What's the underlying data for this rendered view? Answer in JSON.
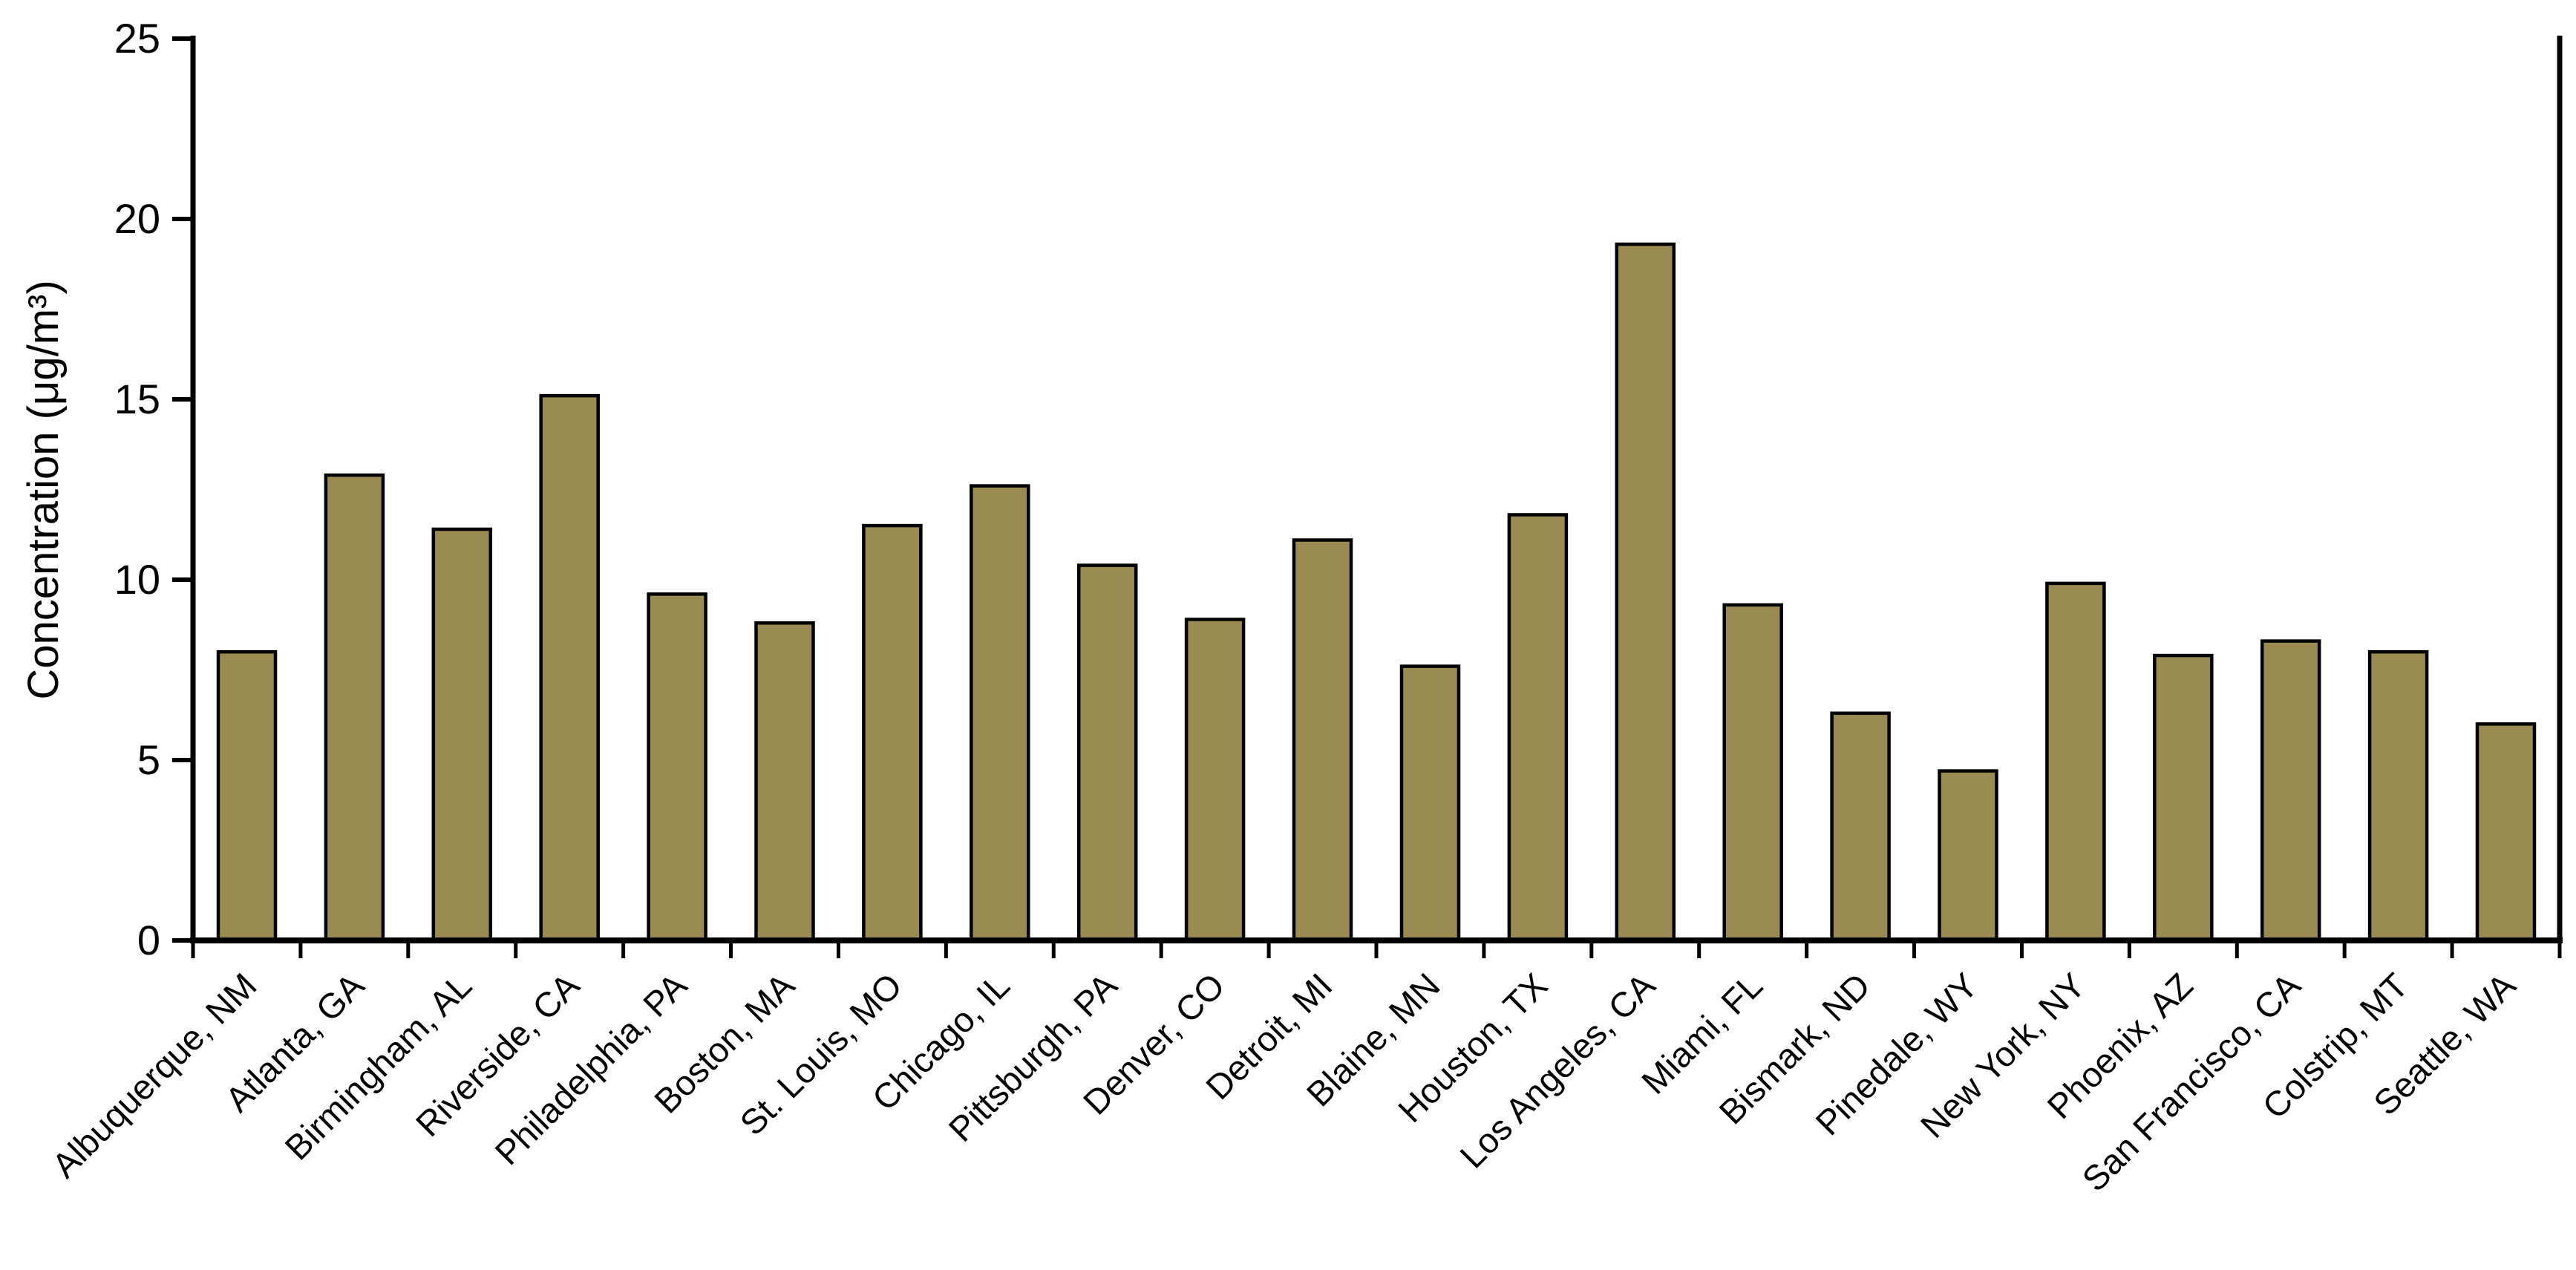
{
  "chart_data": {
    "type": "bar",
    "title": "",
    "xlabel": "",
    "ylabel": "Concentration (μg/m³)",
    "ylim": [
      0,
      25
    ],
    "yticks": [
      0,
      5,
      10,
      15,
      20,
      25
    ],
    "grid": false,
    "legend": false,
    "bar_fill": "#9A8B53",
    "bar_stroke": "#000000",
    "axis_color": "#000000",
    "background": "#FFFFFF",
    "categories": [
      "Albuquerque, NM",
      "Atlanta, GA",
      "Birmingham, AL",
      "Riverside, CA",
      "Philadelphia, PA",
      "Boston, MA",
      "St. Louis, MO",
      "Chicago, IL",
      "Pittsburgh, PA",
      "Denver, CO",
      "Detroit, MI",
      "Blaine, MN",
      "Houston, TX",
      "Los Angeles, CA",
      "Miami, FL",
      "Bismark, ND",
      "Pinedale, WY",
      "New York, NY",
      "Phoenix, AZ",
      "San Francisco, CA",
      "Colstrip, MT",
      "Seattle, WA"
    ],
    "values": [
      8.0,
      12.9,
      11.4,
      15.1,
      9.6,
      8.8,
      11.5,
      12.6,
      10.4,
      8.9,
      11.1,
      7.6,
      11.8,
      19.3,
      9.3,
      6.3,
      4.7,
      9.9,
      7.9,
      8.3,
      8.0,
      6.0
    ]
  }
}
